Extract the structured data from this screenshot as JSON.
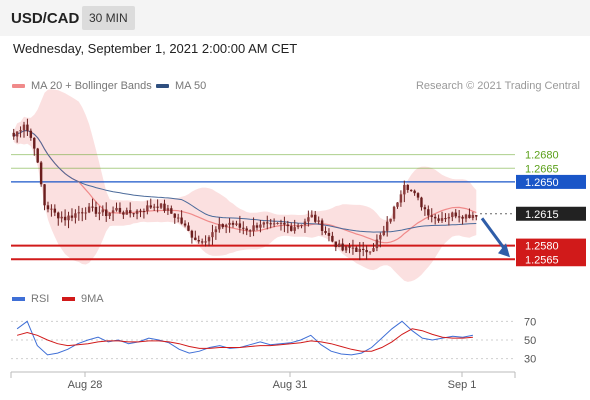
{
  "header": {
    "symbol": "USD/CAD",
    "timeframe": "30 MIN"
  },
  "datetime": "Wednesday, September 1, 2021 2:00:00 AM CET",
  "legend": {
    "ma20_label": "MA 20 + Bollinger Bands",
    "ma50_label": "MA 50",
    "copyright": "Research © 2021 Trading Central"
  },
  "rsi_legend": {
    "rsi_label": "RSI",
    "ma_label": "9MA"
  },
  "colors": {
    "bollinger": "#f9d6d6",
    "ma20": "#f08a8a",
    "ma50": "#4a6a9a",
    "candle": "#6b1e1e",
    "resistance_green": "#5ba01a",
    "pivot_blue": "#1a56c8",
    "support_red": "#d11a1a",
    "last_price": "#222222",
    "arrow": "#2f5da8",
    "rsi": "#3f6fd6",
    "rsi_ma": "#d11a1a"
  },
  "chart_data": [
    {
      "type": "candlestick",
      "title": "USD/CAD",
      "timeframe": "30 MIN",
      "ylim": [
        1.254,
        1.274
      ],
      "x_ticks": [
        "Aug 28",
        "Aug 31",
        "Sep 1"
      ],
      "levels": [
        {
          "value": 1.268,
          "label": "1.2680",
          "kind": "resistance"
        },
        {
          "value": 1.2665,
          "label": "1.2665",
          "kind": "resistance"
        },
        {
          "value": 1.265,
          "label": "1.2650",
          "kind": "pivot"
        },
        {
          "value": 1.2615,
          "label": "1.2615",
          "kind": "last"
        },
        {
          "value": 1.258,
          "label": "1.2580",
          "kind": "support"
        },
        {
          "value": 1.2565,
          "label": "1.2565",
          "kind": "support"
        }
      ],
      "series": [
        {
          "name": "MA 20 + Bollinger Bands"
        },
        {
          "name": "MA 50"
        }
      ],
      "forecast": {
        "direction": "down",
        "from": 1.261,
        "to": 1.2565
      },
      "approx_close_path": [
        1.27,
        1.2715,
        1.269,
        1.2625,
        1.2615,
        1.261,
        1.2615,
        1.262,
        1.2618,
        1.2615,
        1.262,
        1.2615,
        1.2618,
        1.2622,
        1.2625,
        1.2618,
        1.261,
        1.2595,
        1.2585,
        1.259,
        1.26,
        1.2605,
        1.26,
        1.2598,
        1.2605,
        1.26,
        1.2603,
        1.26,
        1.2605,
        1.2612,
        1.26,
        1.2585,
        1.2575,
        1.2578,
        1.2572,
        1.258,
        1.2595,
        1.262,
        1.265,
        1.2635,
        1.262,
        1.261,
        1.2612,
        1.2615,
        1.2613,
        1.2615
      ]
    },
    {
      "type": "line",
      "title": "RSI",
      "ylim": [
        20,
        80
      ],
      "y_ticks": [
        70,
        50,
        30
      ],
      "series": [
        {
          "name": "RSI",
          "values": [
            62,
            70,
            44,
            34,
            36,
            40,
            46,
            50,
            53,
            48,
            50,
            46,
            48,
            52,
            50,
            47,
            40,
            36,
            38,
            42,
            44,
            41,
            42,
            45,
            48,
            45,
            46,
            47,
            50,
            55,
            45,
            38,
            35,
            34,
            36,
            42,
            52,
            62,
            70,
            60,
            52,
            50,
            52,
            54,
            53,
            55
          ]
        },
        {
          "name": "9MA",
          "values": [
            55,
            58,
            55,
            50,
            46,
            44,
            45,
            46,
            48,
            49,
            49,
            48,
            48,
            49,
            49,
            48,
            46,
            43,
            41,
            41,
            42,
            42,
            42,
            43,
            44,
            44,
            45,
            46,
            47,
            49,
            48,
            46,
            43,
            40,
            38,
            38,
            42,
            48,
            56,
            62,
            60,
            56,
            53,
            52,
            52,
            53
          ]
        }
      ]
    }
  ]
}
